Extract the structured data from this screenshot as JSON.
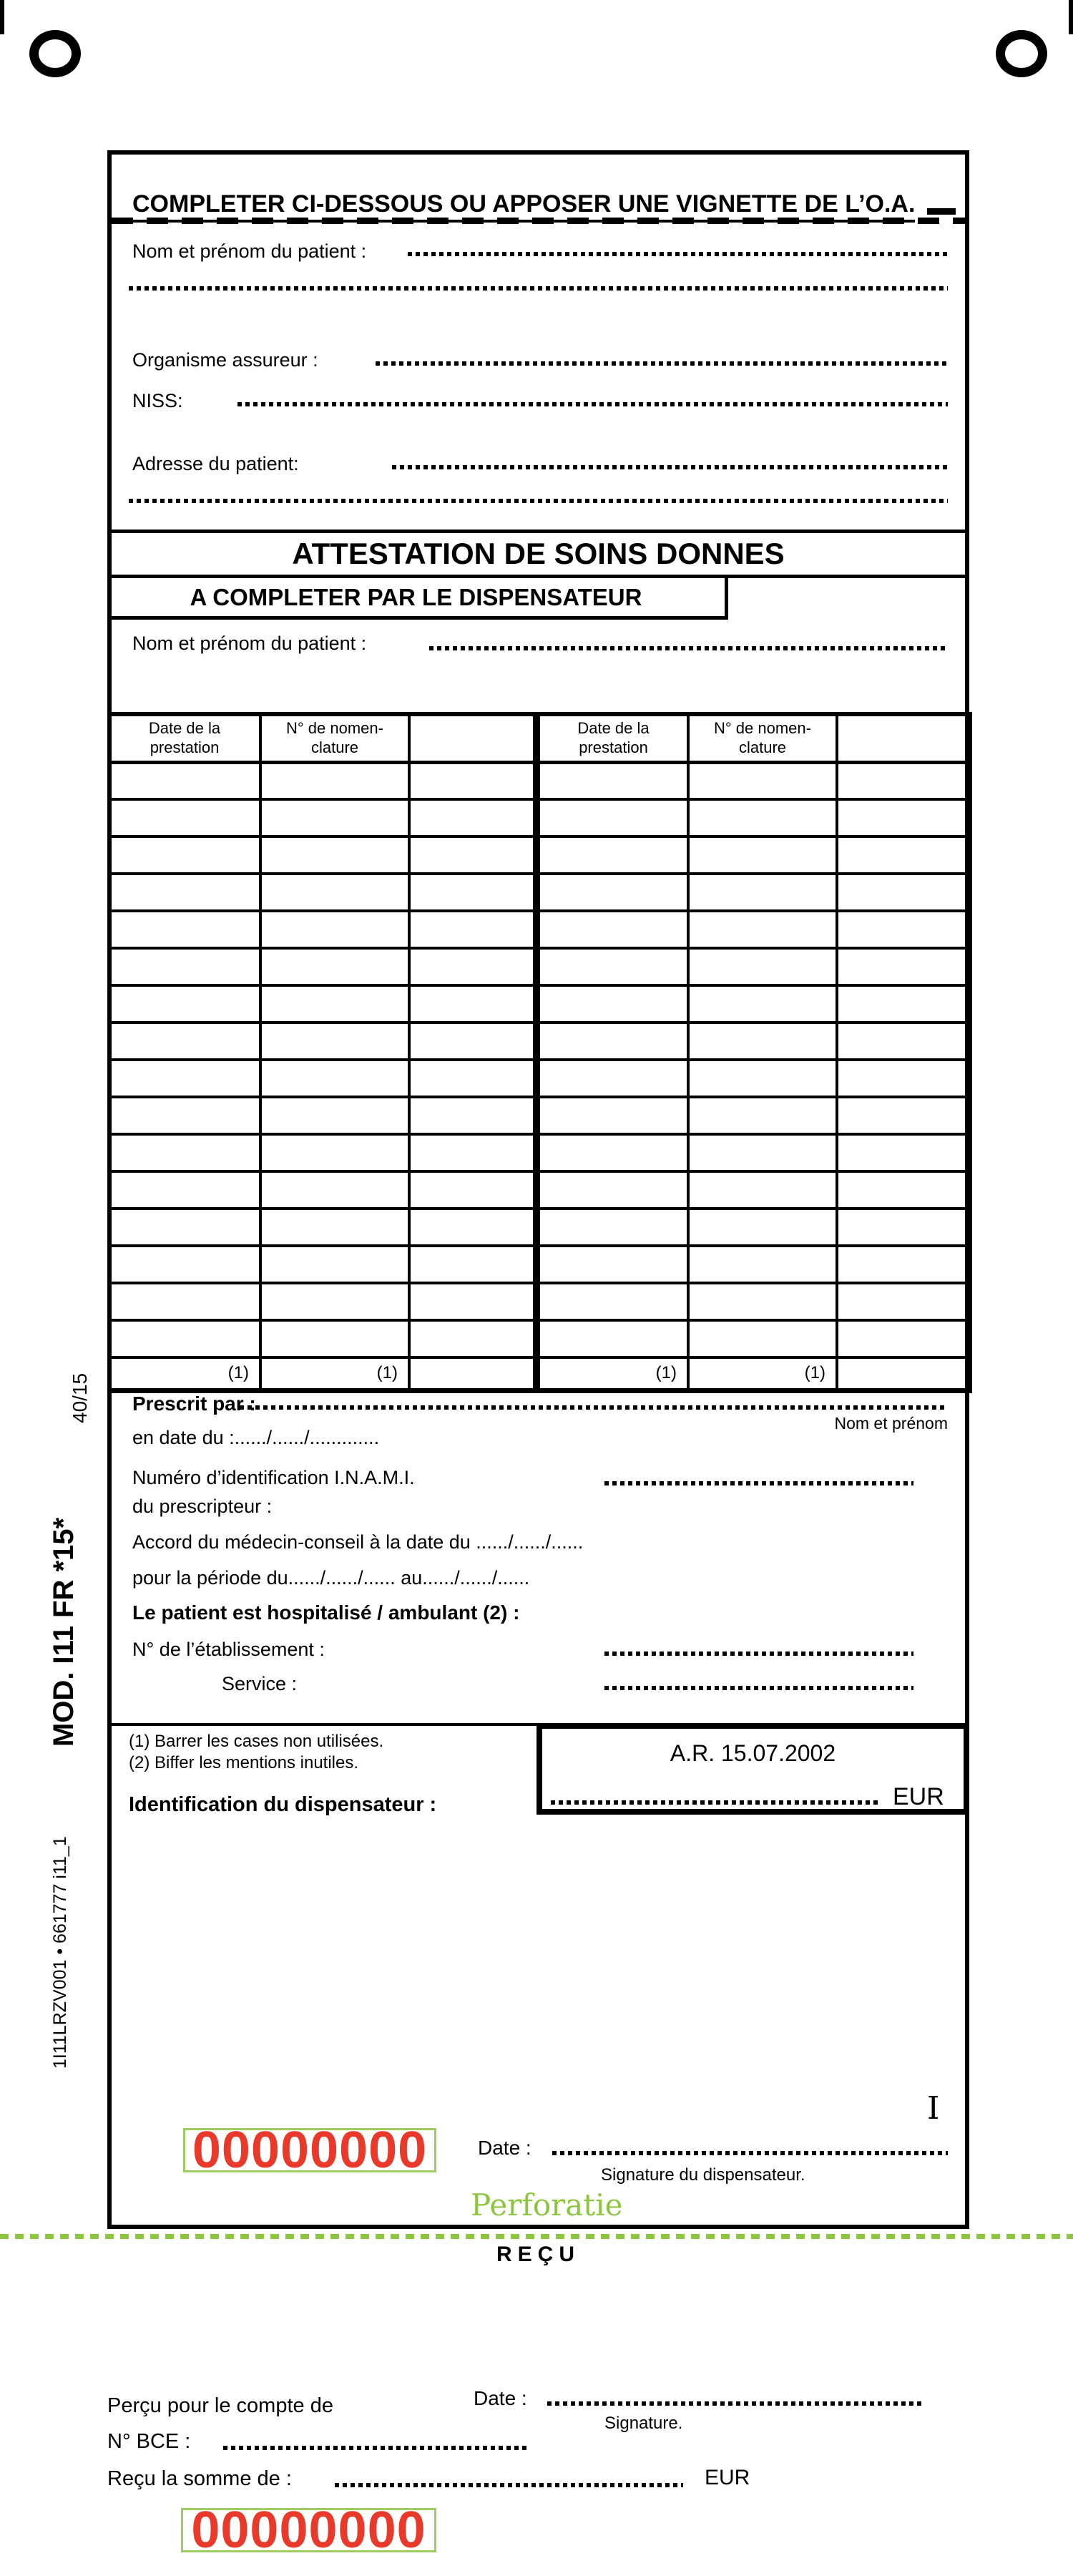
{
  "colors": {
    "red": "#e8392a",
    "green": "#8cc63f",
    "green_border": "#9dcc5f"
  },
  "margin": {
    "doc_code": "40/15",
    "mod_code": "MOD. I11 FR  *15*",
    "print_code": "1I11LRZV001 •  661777 i11_1"
  },
  "sticker": {
    "heading": "COMPLETER CI-DESSOUS OU APPOSER UNE VIGNETTE DE L’O.A.",
    "patient_name_label": "Nom et prénom du patient :",
    "insurer_label": "Organisme assureur :",
    "niss_label": "NISS:",
    "address_label": "Adresse du patient:"
  },
  "header": {
    "title": "ATTESTATION DE SOINS DONNES",
    "subtitle": "A COMPLETER PAR LE DISPENSATEUR",
    "patient_name_label": "Nom et prénom du patient :"
  },
  "table": {
    "date_header": "Date de la\nprestation",
    "nomenclature_header": "N° de nomen-\nclature",
    "footnote_mark": "(1)"
  },
  "prescription": {
    "prescribed_by_label": "Prescrit par :",
    "name_hint": "Nom et prénom",
    "prescribed_date_line": "en date du :....../....../.............",
    "inami_line1": "Numéro d’identification I.N.A.M.I.",
    "inami_line2": "du prescripteur :",
    "agreement_line": "Accord du médecin-conseil à la date du ....../....../......",
    "period_line": "pour la période du....../....../......  au....../....../......",
    "hospitalized_line": "Le patient est hospitalisé / ambulant (2) :",
    "establishment_label": "N° de l’établissement :",
    "service_label": "Service :"
  },
  "notes": {
    "note1": "(1) Barrer les cases non utilisées.",
    "note2": "(2) Biffer les mentions inutiles.",
    "dispenser_label": "Identification du dispensateur :"
  },
  "ar_box": {
    "decree": "A.R. 15.07.2002",
    "currency": "EUR"
  },
  "signature": {
    "serial": "00000000",
    "date_label": "Date :",
    "hint": "Signature du dispensateur.",
    "copy_mark": "I",
    "perforation_label": "Perforatie"
  },
  "receipt": {
    "title": "REÇU",
    "collected_label": "Perçu pour le compte de",
    "date_label": "Date :",
    "signature_hint": "Signature.",
    "bce_label": "N° BCE :",
    "sum_label": "Reçu la somme de :",
    "currency": "EUR",
    "serial": "00000000"
  }
}
